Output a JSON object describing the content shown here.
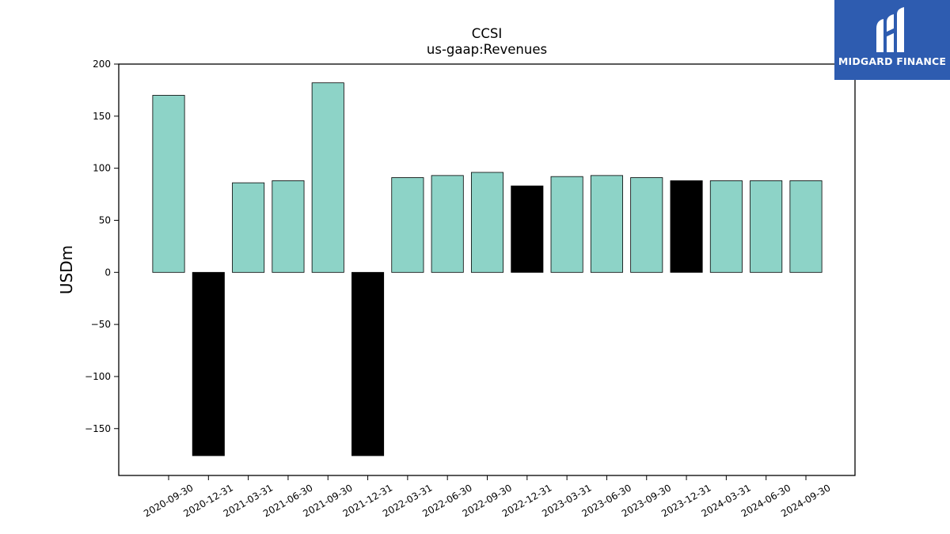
{
  "brand": {
    "name": "MIDGARD FINANCE",
    "background": "#2e5cb0"
  },
  "chart_data": {
    "type": "bar",
    "title": "CCSI",
    "subtitle": "us-gaap:Revenues",
    "xlabel": "",
    "ylabel": "USDm",
    "ylim": [
      -195,
      200
    ],
    "yticks": [
      -150,
      -100,
      -50,
      0,
      50,
      100,
      150,
      200
    ],
    "grid": false,
    "categories": [
      "2020-09-30",
      "2020-12-31",
      "2021-03-31",
      "2021-06-30",
      "2021-09-30",
      "2021-12-31",
      "2022-03-31",
      "2022-06-30",
      "2022-09-30",
      "2022-12-31",
      "2023-03-31",
      "2023-06-30",
      "2023-09-30",
      "2023-12-31",
      "2024-03-31",
      "2024-06-30",
      "2024-09-30"
    ],
    "values": [
      170,
      -176,
      86,
      88,
      182,
      -176,
      91,
      93,
      96,
      83,
      92,
      93,
      91,
      88,
      88,
      88,
      88
    ],
    "colors": [
      "#8dd3c7",
      "#000000",
      "#8dd3c7",
      "#8dd3c7",
      "#8dd3c7",
      "#000000",
      "#8dd3c7",
      "#8dd3c7",
      "#8dd3c7",
      "#000000",
      "#8dd3c7",
      "#8dd3c7",
      "#8dd3c7",
      "#000000",
      "#8dd3c7",
      "#8dd3c7",
      "#8dd3c7"
    ]
  }
}
